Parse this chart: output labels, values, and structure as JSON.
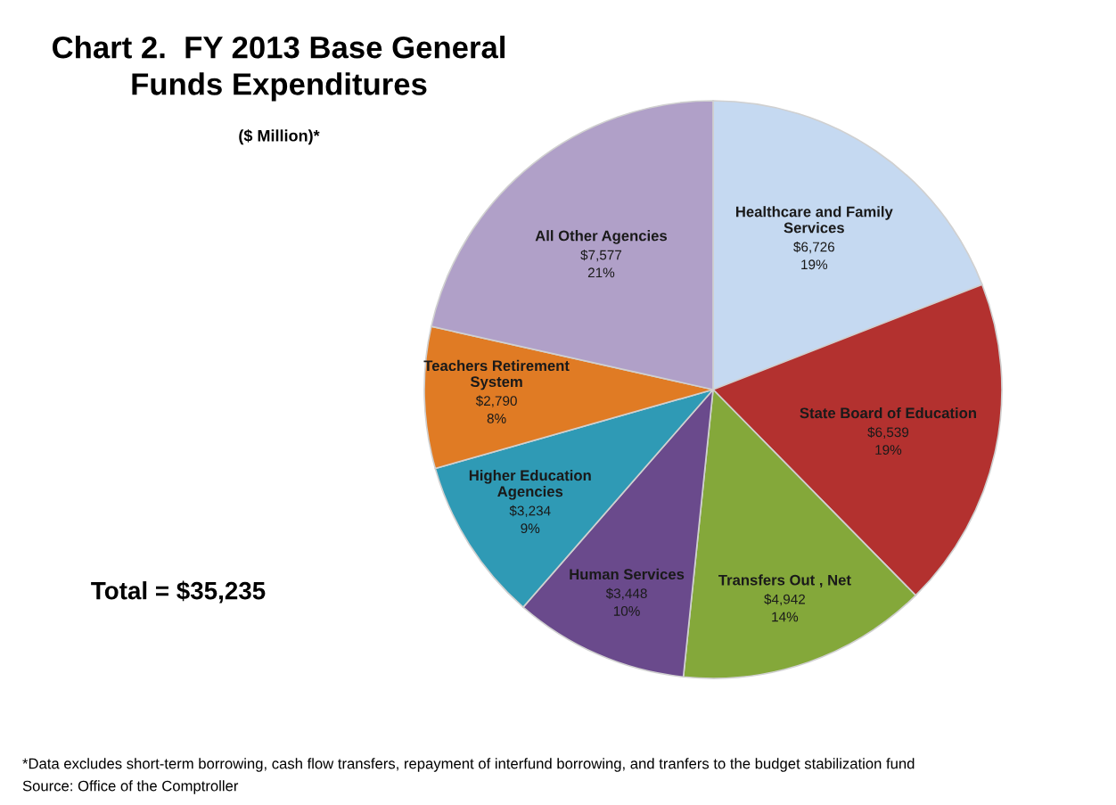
{
  "chart_data": {
    "type": "pie",
    "title": "Chart 2.  FY 2013 Base General Funds Expenditures",
    "subtitle": "($ Million)*",
    "categories": [
      "Healthcare and Family Services",
      "State Board of Education",
      "Transfers Out , Net",
      "Human Services",
      "Higher Education Agencies",
      "Teachers Retirement System",
      "All Other Agencies"
    ],
    "values": [
      6726,
      6539,
      4942,
      3448,
      3234,
      2790,
      7577
    ],
    "value_labels": [
      "$6,726\n19%",
      "$6,539\n19%",
      "$4,942\n14%",
      "$3,448\n10%",
      "$3,234\n9%",
      "$2,790\n8%",
      "$7,577\n21%"
    ],
    "colors": [
      "#c5d9f1",
      "#b3312f",
      "#84a83a",
      "#6a4a8c",
      "#2f9ab5",
      "#e07b24",
      "#b0a0c8"
    ],
    "legend": false,
    "annotations": [
      "Total = $35,235",
      "*Data excludes short-term borrowing, cash flow transfers, repayment of interfund borrowing, and tranfers to the budget stabilization fund",
      "Source: Office of the Comptroller"
    ]
  }
}
